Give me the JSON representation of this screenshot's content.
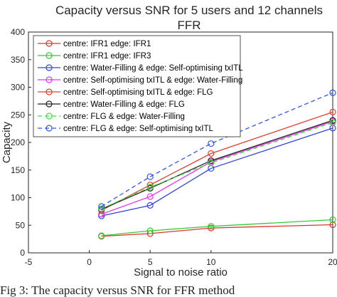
{
  "chart_data": {
    "type": "line",
    "title": "Capacity versus SNR for 5 users and 12 channels",
    "subtitle": "FFR",
    "xlabel": "Signal to noise ratio",
    "ylabel": "Capacity",
    "xlim": [
      -5,
      20
    ],
    "ylim": [
      0,
      400
    ],
    "xticks": [
      "-5",
      "0",
      "5",
      "10",
      "20"
    ],
    "xtick_values": [
      -5,
      0,
      5,
      10,
      20
    ],
    "yticks": [
      "0",
      "50",
      "100",
      "150",
      "200",
      "250",
      "300",
      "350",
      "400"
    ],
    "ytick_values": [
      0,
      50,
      100,
      150,
      200,
      250,
      300,
      350,
      400
    ],
    "grid": false,
    "legend_position": "top-left",
    "x": [
      1,
      5,
      10,
      20
    ],
    "series": [
      {
        "name": "centre: IFR1 edge: IFR1",
        "color": "#e0342c",
        "dash": "solid",
        "values": [
          30,
          35,
          45,
          51
        ]
      },
      {
        "name": "centre: IFR1 edge: IFR3",
        "color": "#33cc33",
        "dash": "solid",
        "values": [
          31,
          40,
          48,
          60
        ]
      },
      {
        "name": "centre: Water-Filling & edge: Self-optimising txITL",
        "color": "#3344dd",
        "dash": "solid",
        "values": [
          67,
          86,
          153,
          226
        ]
      },
      {
        "name": "centre: Self-optimising txITL & edge: Water-Filling",
        "color": "#ee33ee",
        "dash": "solid",
        "values": [
          70,
          102,
          165,
          238
        ]
      },
      {
        "name": "centre: Self-optimising txITL & edge: FLG",
        "color": "#e04030",
        "dash": "solid",
        "values": [
          77,
          123,
          180,
          255
        ]
      },
      {
        "name": "centre: Water-Filling & edge: FLG",
        "color": "#222222",
        "dash": "solid",
        "values": [
          79,
          117,
          167,
          240
        ]
      },
      {
        "name": "centre: FLG & edge: Water-Filling",
        "color": "#44dd44",
        "dash": "dashed",
        "values": [
          80,
          119,
          163,
          236
        ]
      },
      {
        "name": "centre: FLG & edge: Self-optimising txITL",
        "color": "#3355ee",
        "dash": "dashed",
        "values": [
          84,
          138,
          198,
          290
        ]
      }
    ]
  },
  "caption": "Fig 3: The capacity versus SNR for FFR method"
}
